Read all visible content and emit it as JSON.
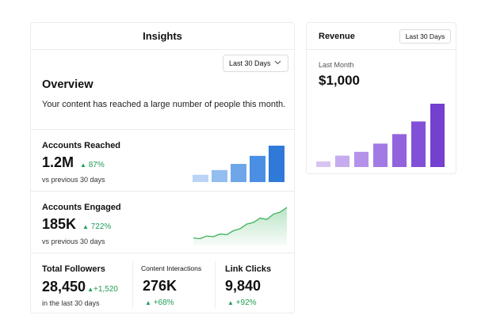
{
  "insights": {
    "title": "Insights",
    "period": "Last 30 Days",
    "overview_title": "Overview",
    "overview_desc": "Your content has reached a large number of people this month.",
    "accounts_reached": {
      "title": "Accounts Reached",
      "value": "1.2M",
      "delta": "87%",
      "sub": "vs previous 30 days",
      "bars": [
        0.2,
        0.33,
        0.5,
        0.72,
        1.0
      ],
      "colors": [
        "#b9d4f6",
        "#94bdf0",
        "#6fa6ea",
        "#4a8fe4",
        "#2f79d8"
      ]
    },
    "accounts_engaged": {
      "title": "Accounts Engaged",
      "value": "185K",
      "delta": "722%",
      "sub": "vs previous 30 days",
      "trend": [
        0.08,
        0.06,
        0.14,
        0.12,
        0.2,
        0.18,
        0.3,
        0.36,
        0.5,
        0.55,
        0.68,
        0.64,
        0.8,
        0.86,
        1.0
      ],
      "color": "#3db25c"
    },
    "total_followers": {
      "title": "Total Followers",
      "value": "28,450",
      "delta": "+1,520",
      "sub": "in the last 30 days"
    },
    "content_interactions": {
      "title": "Content Interactions",
      "value": "276K",
      "delta": "+68%"
    },
    "link_clicks": {
      "title": "Link Clicks",
      "value": "9,840",
      "delta": "+92%"
    }
  },
  "revenue": {
    "title": "Revenue",
    "period": "Last 30 Days",
    "label": "Last Month",
    "value": "$1,000",
    "bars": [
      0.09,
      0.18,
      0.24,
      0.37,
      0.52,
      0.72,
      1.0
    ],
    "colors": [
      "#d7c4f3",
      "#c6abef",
      "#b592ea",
      "#a37ae4",
      "#9263dd",
      "#8250d6",
      "#7440cf"
    ]
  },
  "icons": {
    "up_arrow": "▲",
    "chevron": "chevron-down-icon"
  },
  "accent_green": "#1f9d55"
}
